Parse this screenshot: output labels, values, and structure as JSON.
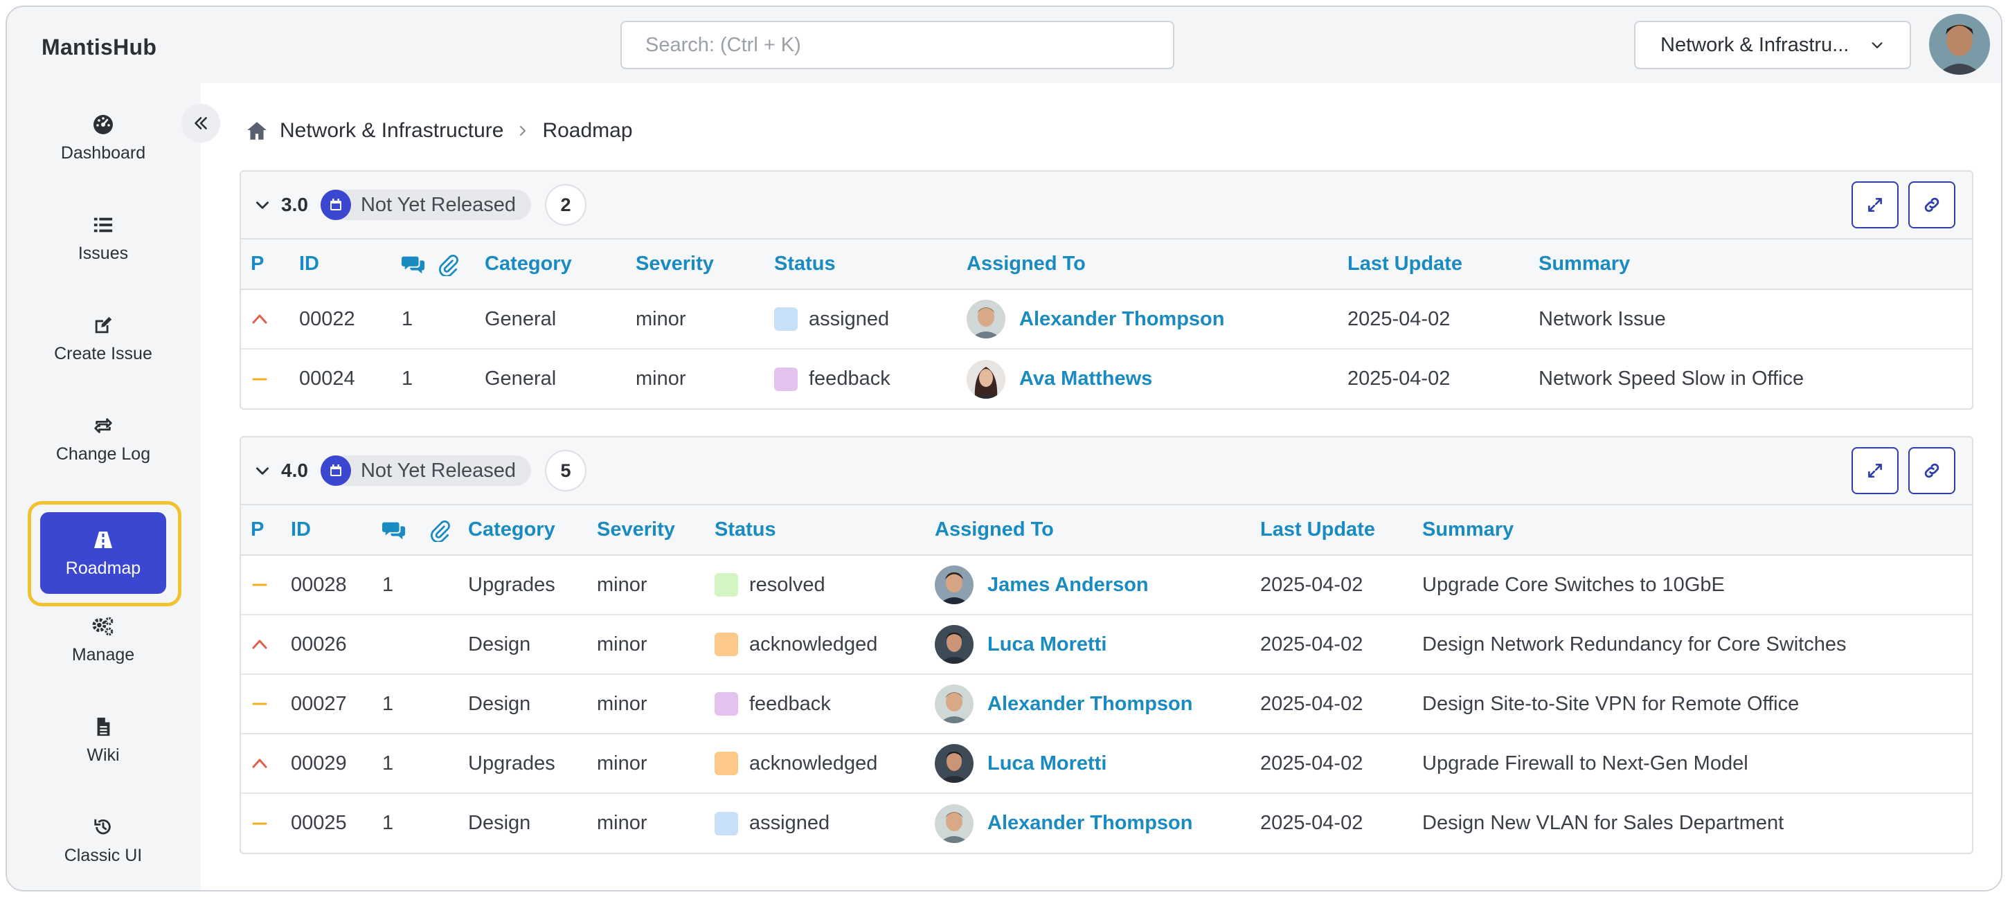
{
  "app": {
    "brand": "MantisHub"
  },
  "search": {
    "placeholder": "Search: (Ctrl + K)"
  },
  "project_selector": {
    "value": "Network & Infrastru..."
  },
  "sidebar": {
    "items": [
      {
        "label": "Dashboard",
        "icon": "dashboard-icon"
      },
      {
        "label": "Issues",
        "icon": "list-icon"
      },
      {
        "label": "Create Issue",
        "icon": "edit-icon"
      },
      {
        "label": "Change Log",
        "icon": "repeat-icon"
      },
      {
        "label": "Roadmap",
        "icon": "road-icon",
        "active": true
      },
      {
        "label": "Manage",
        "icon": "gears-icon"
      },
      {
        "label": "Wiki",
        "icon": "file-icon"
      },
      {
        "label": "Classic UI",
        "icon": "history-icon"
      }
    ]
  },
  "breadcrumb": {
    "project": "Network & Infrastructure",
    "page": "Roadmap"
  },
  "columns": {
    "p": "P",
    "id": "ID",
    "category": "Category",
    "severity": "Severity",
    "status": "Status",
    "assigned_to": "Assigned To",
    "last_update": "Last Update",
    "summary": "Summary"
  },
  "colors": {
    "accent": "#3b46d1",
    "link": "#1a8bc0",
    "status": {
      "assigned": "#c7e0f7",
      "feedback": "#e3c3ee",
      "resolved": "#d4f5c3",
      "acknowledged": "#fdc98a"
    },
    "priority": {
      "high": "#e0604a",
      "normal": "#f2b01e"
    }
  },
  "versions": [
    {
      "version": "3.0",
      "release_status": "Not Yet Released",
      "count": "2",
      "issues": [
        {
          "priority": "high",
          "id": "00022",
          "notes": "1",
          "category": "General",
          "severity": "minor",
          "status": "assigned",
          "assignee": "Alexander Thompson",
          "last_update": "2025-04-02",
          "summary": "Network Issue"
        },
        {
          "priority": "normal",
          "id": "00024",
          "notes": "1",
          "category": "General",
          "severity": "minor",
          "status": "feedback",
          "assignee": "Ava Matthews",
          "last_update": "2025-04-02",
          "summary": "Network Speed Slow in Office"
        }
      ]
    },
    {
      "version": "4.0",
      "release_status": "Not Yet Released",
      "count": "5",
      "issues": [
        {
          "priority": "normal",
          "id": "00028",
          "notes": "1",
          "category": "Upgrades",
          "severity": "minor",
          "status": "resolved",
          "assignee": "James Anderson",
          "last_update": "2025-04-02",
          "summary": "Upgrade Core Switches to 10GbE"
        },
        {
          "priority": "high",
          "id": "00026",
          "notes": "",
          "category": "Design",
          "severity": "minor",
          "status": "acknowledged",
          "assignee": "Luca Moretti",
          "last_update": "2025-04-02",
          "summary": "Design Network Redundancy for Core Switches"
        },
        {
          "priority": "normal",
          "id": "00027",
          "notes": "1",
          "category": "Design",
          "severity": "minor",
          "status": "feedback",
          "assignee": "Alexander Thompson",
          "last_update": "2025-04-02",
          "summary": "Design Site-to-Site VPN for Remote Office"
        },
        {
          "priority": "high",
          "id": "00029",
          "notes": "1",
          "category": "Upgrades",
          "severity": "minor",
          "status": "acknowledged",
          "assignee": "Luca Moretti",
          "last_update": "2025-04-02",
          "summary": "Upgrade Firewall to Next-Gen Model"
        },
        {
          "priority": "normal",
          "id": "00025",
          "notes": "1",
          "category": "Design",
          "severity": "minor",
          "status": "assigned",
          "assignee": "Alexander Thompson",
          "last_update": "2025-04-02",
          "summary": "Design New VLAN for Sales Department"
        }
      ]
    }
  ]
}
